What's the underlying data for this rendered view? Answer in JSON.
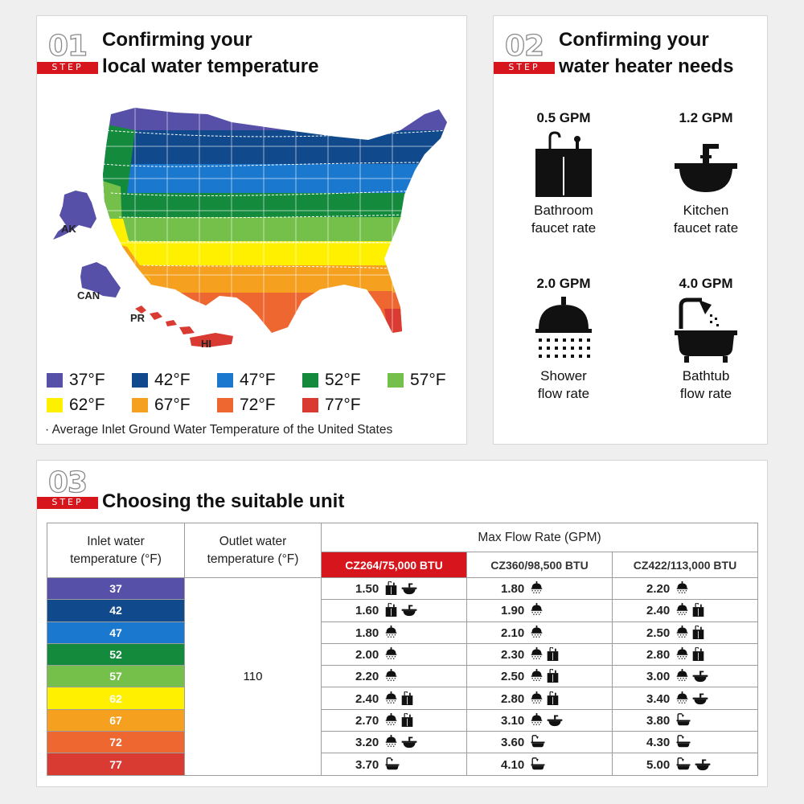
{
  "step1": {
    "number": "01",
    "step_label": "STEP",
    "title_line1": "Confirming your",
    "title_line2": "local water temperature",
    "map_labels": {
      "ak": "AK",
      "can": "CAN",
      "pr": "PR",
      "hi": "HI"
    },
    "legend": [
      {
        "label": "37°F",
        "color": "#5650a8"
      },
      {
        "label": "42°F",
        "color": "#114a8c"
      },
      {
        "label": "47°F",
        "color": "#1a78cf"
      },
      {
        "label": "52°F",
        "color": "#148a3c"
      },
      {
        "label": "57°F",
        "color": "#74c04a"
      },
      {
        "label": "62°F",
        "color": "#fff000"
      },
      {
        "label": "67°F",
        "color": "#f5a01e"
      },
      {
        "label": "72°F",
        "color": "#ee6630"
      },
      {
        "label": "77°F",
        "color": "#d93a31"
      }
    ],
    "note": "· Average Inlet Ground Water Temperature of the United States"
  },
  "step2": {
    "number": "02",
    "step_label": "STEP",
    "title_line1": "Confirming your",
    "title_line2": "water heater needs",
    "needs": [
      {
        "gpm": "0.5 GPM",
        "line1": "Bathroom",
        "line2": "faucet rate",
        "icon": "bathroom-vanity-icon"
      },
      {
        "gpm": "1.2 GPM",
        "line1": "Kitchen",
        "line2": "faucet rate",
        "icon": "kitchen-sink-icon"
      },
      {
        "gpm": "2.0 GPM",
        "line1": "Shower",
        "line2": "flow rate",
        "icon": "shower-head-icon"
      },
      {
        "gpm": "4.0 GPM",
        "line1": "Bathtub",
        "line2": "flow rate",
        "icon": "bathtub-icon"
      }
    ]
  },
  "step3": {
    "number": "03",
    "step_label": "STEP",
    "title": "Choosing the suitable unit",
    "table": {
      "inlet_header_line1": "Inlet water",
      "inlet_header_line2": "temperature (°F)",
      "outlet_header_line1": "Outlet water",
      "outlet_header_line2": "temperature (°F)",
      "max_flow_header": "Max Flow Rate (GPM)",
      "outlet_value": "110",
      "models": [
        "CZ264/75,000 BTU",
        "CZ360/98,500 BTU",
        "CZ422/113,000 BTU"
      ],
      "highlight_color": "#d6151c",
      "rows": [
        {
          "temp": "37",
          "color": "#5650a8",
          "cells": [
            {
              "v": "1.50",
              "icons": [
                "vanity",
                "sink"
              ]
            },
            {
              "v": "1.80",
              "icons": [
                "shower"
              ]
            },
            {
              "v": "2.20",
              "icons": [
                "shower"
              ]
            }
          ]
        },
        {
          "temp": "42",
          "color": "#114a8c",
          "cells": [
            {
              "v": "1.60",
              "icons": [
                "vanity",
                "sink"
              ]
            },
            {
              "v": "1.90",
              "icons": [
                "shower"
              ]
            },
            {
              "v": "2.40",
              "icons": [
                "shower",
                "vanity"
              ]
            }
          ]
        },
        {
          "temp": "47",
          "color": "#1a78cf",
          "cells": [
            {
              "v": "1.80",
              "icons": [
                "shower"
              ]
            },
            {
              "v": "2.10",
              "icons": [
                "shower"
              ]
            },
            {
              "v": "2.50",
              "icons": [
                "shower",
                "vanity"
              ]
            }
          ]
        },
        {
          "temp": "52",
          "color": "#148a3c",
          "cells": [
            {
              "v": "2.00",
              "icons": [
                "shower"
              ]
            },
            {
              "v": "2.30",
              "icons": [
                "shower",
                "vanity"
              ]
            },
            {
              "v": "2.80",
              "icons": [
                "shower",
                "vanity"
              ]
            }
          ]
        },
        {
          "temp": "57",
          "color": "#74c04a",
          "cells": [
            {
              "v": "2.20",
              "icons": [
                "shower"
              ]
            },
            {
              "v": "2.50",
              "icons": [
                "shower",
                "vanity"
              ]
            },
            {
              "v": "3.00",
              "icons": [
                "shower",
                "sink"
              ]
            }
          ]
        },
        {
          "temp": "62",
          "color": "#fff000",
          "cells": [
            {
              "v": "2.40",
              "icons": [
                "shower",
                "vanity"
              ]
            },
            {
              "v": "2.80",
              "icons": [
                "shower",
                "vanity"
              ]
            },
            {
              "v": "3.40",
              "icons": [
                "shower",
                "sink"
              ]
            }
          ]
        },
        {
          "temp": "67",
          "color": "#f5a01e",
          "cells": [
            {
              "v": "2.70",
              "icons": [
                "shower",
                "vanity"
              ]
            },
            {
              "v": "3.10",
              "icons": [
                "shower",
                "sink"
              ]
            },
            {
              "v": "3.80",
              "icons": [
                "bathtub"
              ]
            }
          ]
        },
        {
          "temp": "72",
          "color": "#ee6630",
          "cells": [
            {
              "v": "3.20",
              "icons": [
                "shower",
                "sink"
              ]
            },
            {
              "v": "3.60",
              "icons": [
                "bathtub"
              ]
            },
            {
              "v": "4.30",
              "icons": [
                "bathtub"
              ]
            }
          ]
        },
        {
          "temp": "77",
          "color": "#d93a31",
          "cells": [
            {
              "v": "3.70",
              "icons": [
                "bathtub"
              ]
            },
            {
              "v": "4.10",
              "icons": [
                "bathtub"
              ]
            },
            {
              "v": "5.00",
              "icons": [
                "bathtub",
                "sink"
              ]
            }
          ]
        }
      ]
    }
  }
}
